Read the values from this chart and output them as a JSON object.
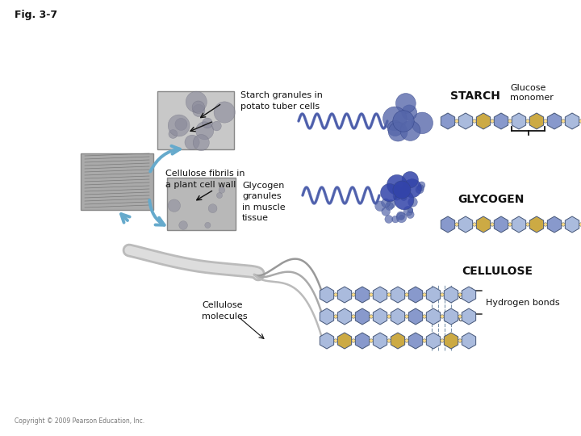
{
  "background_color": "#ffffff",
  "fig_label": "Fig. 3-7",
  "labels": {
    "starch_granules": "Starch granules in\npotato tuber cells",
    "glycogen_granules": "Glycogen\ngranules\nin muscle\ntissue",
    "cellulose_fibrils": "Cellulose fibrils in\na plant cell wall",
    "cellulose_molecules": "Cellulose\nmolecules",
    "starch": "STARCH",
    "glucose_monomer": "Glucose\nmonomer",
    "glycogen": "GLYCOGEN",
    "cellulose": "CELLULOSE",
    "hydrogen_bonds": "Hydrogen bonds",
    "copyright": "Copyright © 2009 Pearson Education, Inc."
  },
  "colors": {
    "hexagon_blue": "#8899cc",
    "hexagon_blue_light": "#aabbdd",
    "hexagon_yellow": "#ccaa44",
    "helix_blue": "#6677bb",
    "helix_dark": "#334499",
    "blob_blue": "#5566aa",
    "blob_dark": "#334488",
    "arrow_blue": "#66aacc",
    "text_dark": "#111111",
    "gray_micro": "#cccccc",
    "gray_mid": "#bbbbbb",
    "gray_dark": "#aaaaaa"
  }
}
